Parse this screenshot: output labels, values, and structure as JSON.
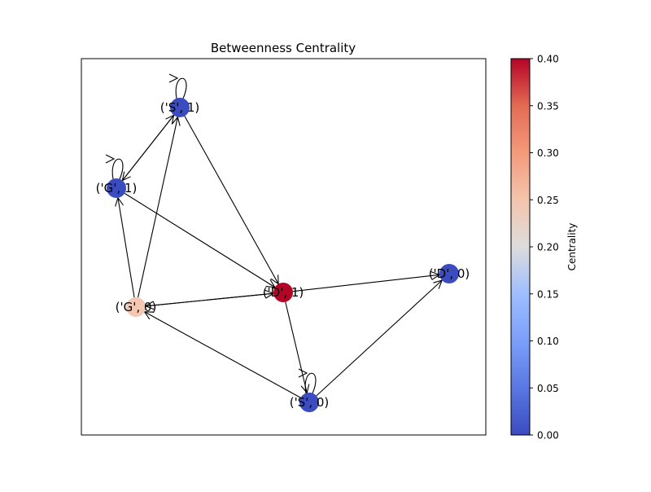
{
  "title": "Betweenness Centrality",
  "colorbar": {
    "label": "Centrality",
    "range": [
      0.0,
      0.4
    ],
    "colormap": "coolwarm",
    "ticks": [
      "0.00",
      "0.05",
      "0.10",
      "0.15",
      "0.20",
      "0.25",
      "0.30",
      "0.35",
      "0.40"
    ]
  },
  "graph": {
    "nodes": [
      {
        "id": "S1",
        "label": "('S', 1)",
        "centrality": 0.0,
        "color": "#3b4cc0"
      },
      {
        "id": "G1",
        "label": "('G', 1)",
        "centrality": 0.0,
        "color": "#3b4cc0"
      },
      {
        "id": "D1",
        "label": "('D', 1)",
        "centrality": 0.4,
        "color": "#b40426"
      },
      {
        "id": "G0",
        "label": "('G', 0)",
        "centrality": 0.25,
        "color": "#f3c7b1"
      },
      {
        "id": "D0",
        "label": "('D', 0)",
        "centrality": 0.0,
        "color": "#3b4cc0"
      },
      {
        "id": "S0",
        "label": "('S', 0)",
        "centrality": 0.0,
        "color": "#3b4cc0"
      }
    ],
    "edges": [
      {
        "from": "S1",
        "to": "S1"
      },
      {
        "from": "G1",
        "to": "G1"
      },
      {
        "from": "S0",
        "to": "S0"
      },
      {
        "from": "S1",
        "to": "G1"
      },
      {
        "from": "G1",
        "to": "S1"
      },
      {
        "from": "G0",
        "to": "S1"
      },
      {
        "from": "G0",
        "to": "G1"
      },
      {
        "from": "S1",
        "to": "D1"
      },
      {
        "from": "G1",
        "to": "D1"
      },
      {
        "from": "G0",
        "to": "D1"
      },
      {
        "from": "D1",
        "to": "G0"
      },
      {
        "from": "D1",
        "to": "D0"
      },
      {
        "from": "D1",
        "to": "S0"
      },
      {
        "from": "S0",
        "to": "D0"
      },
      {
        "from": "S0",
        "to": "G0"
      }
    ]
  }
}
